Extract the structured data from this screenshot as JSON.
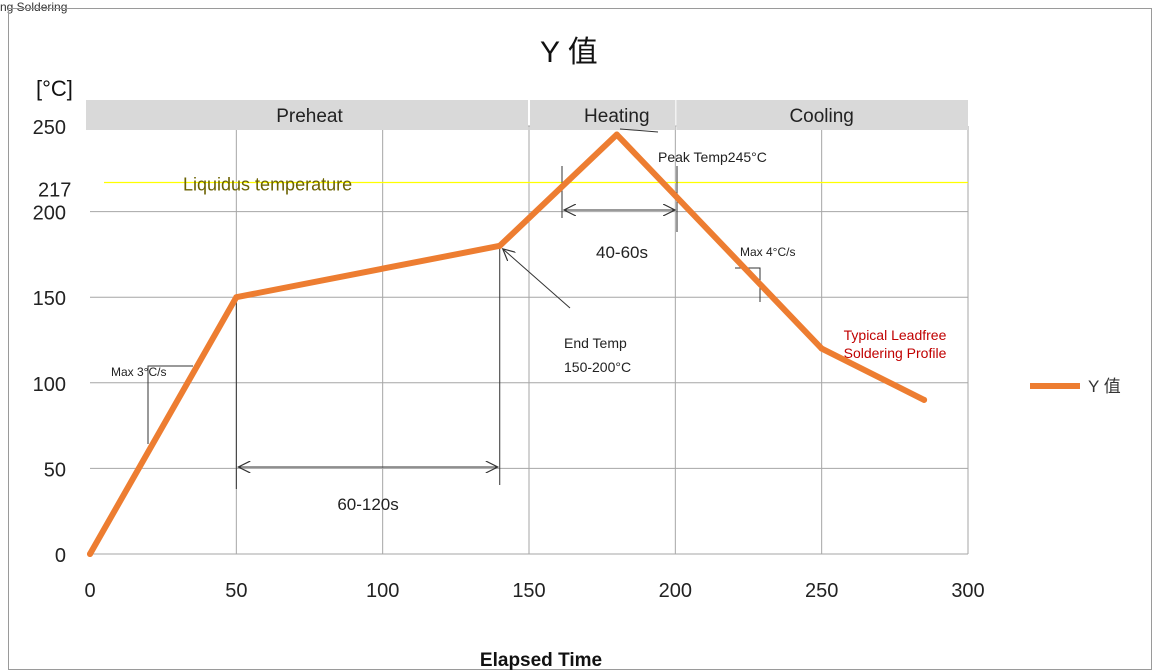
{
  "top_caption": "ng Soldering",
  "chart_data": {
    "type": "line",
    "title": "Y 值",
    "xlabel": "Elapsed Time",
    "ylabel_unit": "[°C]",
    "xlim": [
      0,
      300
    ],
    "ylim": [
      0,
      250
    ],
    "x_ticks": [
      0,
      50,
      100,
      150,
      200,
      250,
      300
    ],
    "y_ticks": [
      0,
      50,
      100,
      150,
      200,
      250
    ],
    "grid": true,
    "legend": {
      "position": "right",
      "entries": [
        "Y 值"
      ]
    },
    "series": [
      {
        "name": "Y 值",
        "color": "#ED7D31",
        "points": [
          [
            0,
            0
          ],
          [
            50,
            150
          ],
          [
            140,
            180
          ],
          [
            180,
            245
          ],
          [
            250,
            120
          ],
          [
            285,
            90
          ]
        ]
      }
    ],
    "phase_bands": [
      {
        "label": "Preheat",
        "from": 0,
        "to": 150
      },
      {
        "label": "Heating",
        "from": 150,
        "to": 200
      },
      {
        "label": "Cooling",
        "from": 200,
        "to": 300
      }
    ],
    "reference_line": {
      "label": "Liquidus temperature",
      "value": 217,
      "value_label": "217",
      "color": "#FFFF00"
    },
    "annotations": {
      "peak": "Peak Temp245°C",
      "time_above_liquidus": "40-60s",
      "soak_time": "60-120s",
      "end_temp_line1": "End Temp",
      "end_temp_line2": "150-200°C",
      "ramp_up": "Max 3°C/s",
      "ramp_down": "Max 4°C/s",
      "profile_line1": "Typical Leadfree",
      "profile_line2": "Soldering Profile"
    }
  }
}
